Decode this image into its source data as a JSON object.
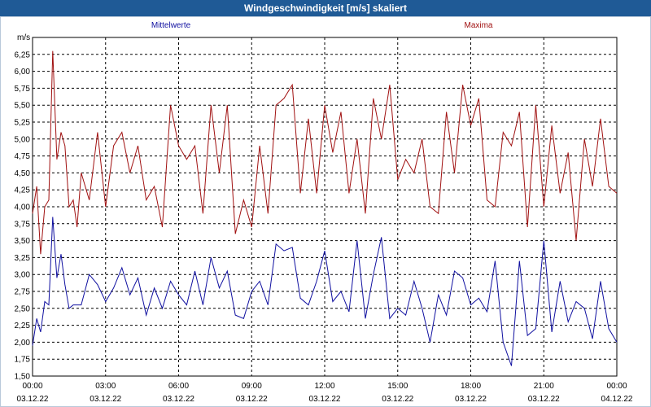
{
  "window": {
    "title": "Windgeschwindigkeit [m/s] skaliert"
  },
  "chart_data": {
    "type": "line",
    "title": "Windgeschwindigkeit [m/s] skaliert",
    "ylabel": "m/s",
    "xlabel": "",
    "ylim": [
      1.5,
      6.5
    ],
    "grid": true,
    "legend_placement": "top",
    "y_ticks": [
      "1,50",
      "1,75",
      "2,00",
      "2,25",
      "2,50",
      "2,75",
      "3,00",
      "3,25",
      "3,50",
      "3,75",
      "4,00",
      "4,25",
      "4,50",
      "4,75",
      "5,00",
      "5,25",
      "5,50",
      "5,75",
      "6,00",
      "6,25"
    ],
    "x_ticks": [
      {
        "time": "00:00",
        "date": "03.12.22"
      },
      {
        "time": "03:00",
        "date": "03.12.22"
      },
      {
        "time": "06:00",
        "date": "03.12.22"
      },
      {
        "time": "09:00",
        "date": "03.12.22"
      },
      {
        "time": "12:00",
        "date": "03.12.22"
      },
      {
        "time": "15:00",
        "date": "03.12.22"
      },
      {
        "time": "18:00",
        "date": "03.12.22"
      },
      {
        "time": "21:00",
        "date": "03.12.22"
      },
      {
        "time": "00:00",
        "date": "04.12.22"
      }
    ],
    "x_unit_hours": 24,
    "series": [
      {
        "name": "Mittelwerte",
        "color": "#1010a0",
        "x": [
          0,
          0.17,
          0.33,
          0.5,
          0.67,
          0.83,
          1,
          1.17,
          1.33,
          1.5,
          1.67,
          1.83,
          2,
          2.33,
          2.67,
          3,
          3.33,
          3.67,
          4,
          4.33,
          4.67,
          5,
          5.33,
          5.67,
          6,
          6.33,
          6.67,
          7,
          7.33,
          7.67,
          8,
          8.33,
          8.67,
          9,
          9.33,
          9.67,
          10,
          10.33,
          10.67,
          11,
          11.33,
          11.67,
          12,
          12.33,
          12.67,
          13,
          13.33,
          13.67,
          14,
          14.33,
          14.67,
          15,
          15.33,
          15.67,
          16,
          16.33,
          16.67,
          17,
          17.33,
          17.67,
          18,
          18.33,
          18.67,
          19,
          19.33,
          19.67,
          20,
          20.33,
          20.67,
          21,
          21.33,
          21.67,
          22,
          22.33,
          22.67,
          23,
          23.33,
          23.67,
          24
        ],
        "values": [
          1.95,
          2.35,
          2.15,
          2.6,
          2.55,
          3.85,
          2.95,
          3.3,
          2.85,
          2.5,
          2.55,
          2.55,
          2.55,
          3.0,
          2.85,
          2.6,
          2.8,
          3.1,
          2.7,
          2.95,
          2.4,
          2.8,
          2.5,
          2.9,
          2.7,
          2.55,
          3.05,
          2.55,
          3.25,
          2.8,
          3.05,
          2.4,
          2.35,
          2.75,
          2.9,
          2.55,
          3.45,
          3.35,
          3.4,
          2.65,
          2.55,
          2.9,
          3.35,
          2.6,
          2.75,
          2.45,
          3.5,
          2.35,
          3.0,
          3.55,
          2.35,
          2.5,
          2.4,
          2.9,
          2.5,
          2.0,
          2.7,
          2.4,
          3.05,
          2.95,
          2.55,
          2.65,
          2.45,
          3.2,
          2.0,
          1.65,
          3.2,
          2.1,
          2.2,
          3.5,
          2.15,
          2.9,
          2.3,
          2.6,
          2.5,
          2.05,
          2.9,
          2.2,
          2.0
        ]
      },
      {
        "name": "Maxima",
        "color": "#a01010",
        "x": [
          0,
          0.17,
          0.33,
          0.5,
          0.67,
          0.83,
          1,
          1.17,
          1.33,
          1.5,
          1.67,
          1.83,
          2,
          2.33,
          2.67,
          3,
          3.33,
          3.67,
          4,
          4.33,
          4.67,
          5,
          5.33,
          5.67,
          6,
          6.33,
          6.67,
          7,
          7.33,
          7.67,
          8,
          8.33,
          8.67,
          9,
          9.33,
          9.67,
          10,
          10.33,
          10.67,
          11,
          11.33,
          11.67,
          12,
          12.33,
          12.67,
          13,
          13.33,
          13.67,
          14,
          14.33,
          14.67,
          15,
          15.33,
          15.67,
          16,
          16.33,
          16.67,
          17,
          17.33,
          17.67,
          18,
          18.33,
          18.67,
          19,
          19.33,
          19.67,
          20,
          20.33,
          20.67,
          21,
          21.33,
          21.67,
          22,
          22.33,
          22.67,
          23,
          23.33,
          23.67,
          24
        ],
        "values": [
          3.9,
          4.3,
          3.3,
          4.0,
          4.1,
          6.3,
          4.7,
          5.1,
          4.9,
          4.0,
          4.1,
          3.7,
          4.5,
          4.1,
          5.1,
          4.0,
          4.9,
          5.1,
          4.5,
          4.9,
          4.1,
          4.3,
          3.7,
          5.5,
          4.9,
          4.7,
          4.9,
          3.9,
          5.5,
          4.5,
          5.5,
          3.6,
          4.1,
          3.7,
          4.9,
          3.9,
          5.5,
          5.6,
          5.8,
          4.2,
          5.3,
          4.2,
          5.5,
          4.8,
          5.4,
          4.2,
          5.0,
          3.9,
          5.6,
          5.0,
          5.8,
          4.4,
          4.7,
          4.5,
          5.0,
          4.0,
          3.9,
          5.4,
          4.5,
          5.8,
          5.2,
          5.6,
          4.1,
          4.0,
          5.1,
          4.9,
          5.4,
          3.7,
          5.5,
          4.0,
          5.2,
          4.2,
          4.8,
          3.5,
          5.0,
          4.3,
          5.3,
          4.3,
          4.2
        ]
      }
    ]
  }
}
